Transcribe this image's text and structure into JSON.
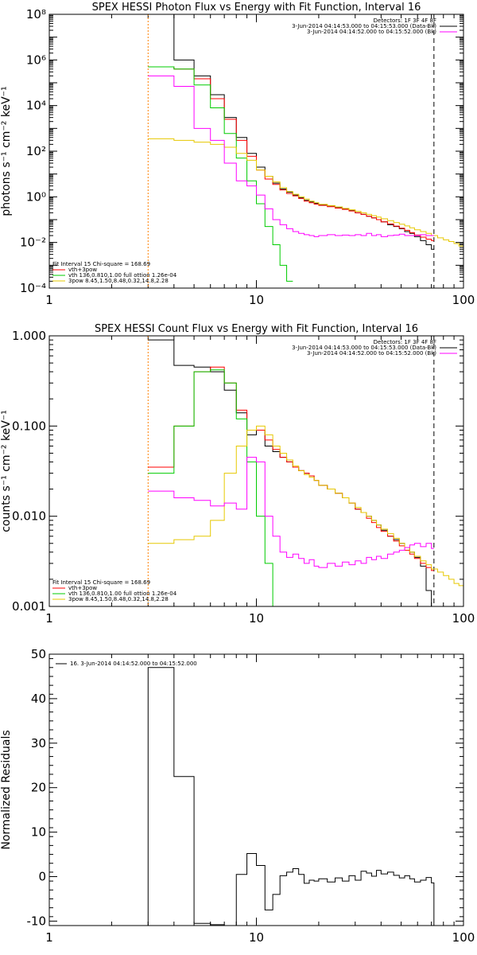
{
  "chart_data": [
    {
      "type": "line",
      "title": "SPEX HESSI Photon Flux vs Energy with Fit Function, Interval 16",
      "xlabel": "",
      "ylabel": "photons s⁻¹ cm⁻² keV⁻¹",
      "x_scale": "log",
      "y_scale": "log",
      "xlim": [
        1,
        100
      ],
      "ylim": [
        0.0001,
        100000000
      ],
      "x_ticks": [
        {
          "v": 1,
          "label": "1"
        },
        {
          "v": 10,
          "label": "10"
        },
        {
          "v": 100,
          "label": "100"
        }
      ],
      "y_ticks": [
        {
          "v": 0.0001,
          "label": "10⁻⁴"
        },
        {
          "v": 0.01,
          "label": "10⁻²"
        },
        {
          "v": 1,
          "label": "10⁰"
        },
        {
          "v": 100,
          "label": "10²"
        },
        {
          "v": 10000,
          "label": "10⁴"
        },
        {
          "v": 1000000,
          "label": "10⁶"
        },
        {
          "v": 100000000,
          "label": "10⁸"
        }
      ],
      "vlines": [
        {
          "x": 3,
          "color": "#ff7f00",
          "dash": "2,2"
        },
        {
          "x": 72,
          "color": "#000000",
          "dash": "6,4"
        }
      ],
      "legend_top_right": [
        {
          "text": "Detectors: 1F 3F 4F 8F",
          "color": "#000000"
        },
        {
          "text": "3-Jun-2014 04:14:53.000 to 04:15:53.000 (Data-Bk)",
          "color": "#000000"
        },
        {
          "text": "3-Jun-2014 04:14:52.000 to 04:15:52.000 (Bk)",
          "color": "#ff00ff"
        }
      ],
      "legend_bottom_left": [
        {
          "text": "Fit Interval 15   Chi-square = 168.69",
          "color": "#000000"
        },
        {
          "text": "vth+3pow",
          "color": "#ff0000"
        },
        {
          "text": "vth 136,0.810,1.00  full ottion 1.26e-04",
          "color": "#00cc00"
        },
        {
          "text": "3pow  8.45,1.50,8.48,0.32,14.8,2.28",
          "color": "#e6c800"
        }
      ],
      "series": [
        {
          "color": "#000000",
          "type": "step",
          "edges": [
            3,
            4,
            5,
            6,
            7,
            8,
            9,
            10,
            11,
            12,
            13,
            14,
            15,
            16,
            17,
            18,
            19,
            20,
            22,
            24,
            26,
            28,
            30,
            32,
            34,
            36,
            38,
            40,
            43,
            46,
            49,
            52,
            55,
            58,
            62,
            66,
            70,
            72
          ],
          "values": [
            100000000,
            1000000,
            200000,
            30000,
            3000,
            400,
            80,
            20,
            8,
            4,
            2.2,
            1.6,
            1.2,
            0.9,
            0.7,
            0.6,
            0.52,
            0.45,
            0.4,
            0.35,
            0.3,
            0.25,
            0.2,
            0.17,
            0.14,
            0.12,
            0.1,
            0.08,
            0.06,
            0.05,
            0.04,
            0.03,
            0.025,
            0.018,
            0.012,
            0.008,
            0.005
          ]
        },
        {
          "color": "#ff0000",
          "type": "step",
          "edges": [
            3,
            4,
            5,
            6,
            7,
            8,
            9,
            10,
            11,
            12,
            13,
            14,
            15,
            16,
            17,
            18,
            19,
            20,
            22,
            24,
            26,
            28,
            30,
            32,
            34,
            36,
            38,
            40,
            43,
            46,
            49,
            52,
            55,
            58,
            62,
            66,
            70,
            72
          ],
          "values": [
            500000,
            400000,
            150000,
            20000,
            2500,
            300,
            60,
            15,
            6,
            3.5,
            2.0,
            1.4,
            1.1,
            0.85,
            0.65,
            0.55,
            0.48,
            0.42,
            0.37,
            0.32,
            0.28,
            0.24,
            0.2,
            0.17,
            0.14,
            0.12,
            0.1,
            0.08,
            0.065,
            0.052,
            0.042,
            0.034,
            0.027,
            0.021,
            0.017,
            0.014,
            0.012
          ]
        },
        {
          "color": "#00cc00",
          "type": "step",
          "edges": [
            3,
            4,
            5,
            6,
            7,
            8,
            9,
            10,
            11,
            12,
            13,
            14,
            15
          ],
          "values": [
            500000,
            400000,
            80000,
            8000,
            600,
            50,
            5,
            0.5,
            0.05,
            0.008,
            0.001,
            0.0002
          ]
        },
        {
          "color": "#e6c800",
          "type": "step",
          "edges": [
            3,
            4,
            5,
            6,
            7,
            8,
            9,
            10,
            11,
            12,
            13,
            14,
            15,
            16,
            17,
            18,
            19,
            20,
            22,
            24,
            26,
            28,
            30,
            32,
            34,
            36,
            38,
            40,
            43,
            46,
            49,
            52,
            55,
            58,
            62,
            66,
            70,
            75,
            80,
            85,
            90,
            95,
            100
          ],
          "values": [
            350,
            300,
            250,
            200,
            150,
            80,
            40,
            15,
            8,
            4.5,
            2.5,
            1.7,
            1.3,
            1.0,
            0.8,
            0.65,
            0.55,
            0.47,
            0.41,
            0.36,
            0.31,
            0.27,
            0.23,
            0.2,
            0.17,
            0.15,
            0.13,
            0.11,
            0.09,
            0.075,
            0.063,
            0.053,
            0.044,
            0.036,
            0.03,
            0.025,
            0.02,
            0.016,
            0.013,
            0.011,
            0.009,
            0.007
          ]
        },
        {
          "color": "#ff00ff",
          "type": "step",
          "edges": [
            3,
            4,
            5,
            6,
            7,
            8,
            9,
            10,
            11,
            12,
            13,
            14,
            15,
            16,
            17,
            18,
            19,
            20,
            22,
            24,
            26,
            28,
            30,
            32,
            34,
            36,
            38,
            40,
            43,
            46,
            49,
            52,
            55,
            58,
            62,
            66,
            70,
            72
          ],
          "values": [
            200000,
            70000,
            1000,
            300,
            30,
            5,
            3,
            1.2,
            0.3,
            0.1,
            0.06,
            0.04,
            0.03,
            0.025,
            0.022,
            0.02,
            0.018,
            0.02,
            0.022,
            0.02,
            0.021,
            0.02,
            0.022,
            0.02,
            0.025,
            0.02,
            0.022,
            0.018,
            0.02,
            0.021,
            0.023,
            0.02,
            0.02,
            0.02,
            0.022,
            0.02,
            0.02
          ]
        }
      ]
    },
    {
      "type": "line",
      "title": "SPEX HESSI Count Flux vs Energy with Fit Function, Interval 16",
      "xlabel": "",
      "ylabel": "counts s⁻¹ cm⁻² keV⁻¹",
      "x_scale": "log",
      "y_scale": "log",
      "xlim": [
        1,
        100
      ],
      "ylim": [
        0.001,
        1
      ],
      "x_ticks": [
        {
          "v": 1,
          "label": "1"
        },
        {
          "v": 10,
          "label": "10"
        },
        {
          "v": 100,
          "label": "100"
        }
      ],
      "y_ticks": [
        {
          "v": 0.001,
          "label": "0.001"
        },
        {
          "v": 0.01,
          "label": "0.010"
        },
        {
          "v": 0.1,
          "label": "0.100"
        },
        {
          "v": 1,
          "label": "1.000"
        }
      ],
      "vlines": [
        {
          "x": 3,
          "color": "#ff7f00",
          "dash": "2,2"
        },
        {
          "x": 72,
          "color": "#000000",
          "dash": "6,4"
        }
      ],
      "legend_top_right": [
        {
          "text": "Detectors: 1F 3F 4F 8F",
          "color": "#000000"
        },
        {
          "text": "3-Jun-2014 04:14:53.000 to 04:15:53.000 (Data-Bk)",
          "color": "#000000"
        },
        {
          "text": "3-Jun-2014 04:14:52.000 to 04:15:52.000 (Bk)",
          "color": "#ff00ff"
        }
      ],
      "legend_bottom_left": [
        {
          "text": "Fit Interval 15   Chi-square = 168.69",
          "color": "#000000"
        },
        {
          "text": "vth+3pow",
          "color": "#ff0000"
        },
        {
          "text": "vth 136,0.810,1.00  full ottion 1.26e-04",
          "color": "#00cc00"
        },
        {
          "text": "3pow  8.45,1.50,8.48,0.32,14.8,2.28",
          "color": "#e6c800"
        }
      ],
      "series": [
        {
          "color": "#000000",
          "type": "step",
          "edges": [
            3,
            4,
            5,
            6,
            7,
            8,
            9,
            10,
            11,
            12,
            13,
            14,
            15,
            16,
            17,
            18,
            19,
            20,
            22,
            24,
            26,
            28,
            30,
            32,
            34,
            36,
            38,
            40,
            43,
            46,
            49,
            52,
            55,
            58,
            62,
            66,
            70,
            72
          ],
          "values": [
            0.9,
            0.47,
            0.45,
            0.4,
            0.25,
            0.14,
            0.08,
            0.09,
            0.06,
            0.052,
            0.045,
            0.04,
            0.035,
            0.032,
            0.03,
            0.028,
            0.025,
            0.022,
            0.02,
            0.018,
            0.016,
            0.014,
            0.012,
            0.011,
            0.01,
            0.009,
            0.008,
            0.007,
            0.006,
            0.0055,
            0.005,
            0.0045,
            0.004,
            0.0035,
            0.0028,
            0.0015,
            0.001
          ]
        },
        {
          "color": "#ff0000",
          "type": "step",
          "edges": [
            3,
            4,
            5,
            6,
            7,
            8,
            9,
            10,
            11,
            12,
            13,
            14,
            15,
            16,
            17,
            18,
            19,
            20,
            22,
            24,
            26,
            28,
            30,
            32,
            34,
            36,
            38,
            40,
            43,
            46,
            49,
            52,
            55,
            58,
            62,
            66,
            70,
            72
          ],
          "values": [
            0.035,
            0.1,
            0.4,
            0.45,
            0.3,
            0.15,
            0.09,
            0.09,
            0.07,
            0.055,
            0.045,
            0.04,
            0.035,
            0.032,
            0.03,
            0.028,
            0.025,
            0.022,
            0.02,
            0.018,
            0.016,
            0.014,
            0.012,
            0.011,
            0.0095,
            0.0085,
            0.0075,
            0.0068,
            0.006,
            0.0053,
            0.0047,
            0.0042,
            0.0038,
            0.0034,
            0.003,
            0.0027,
            0.0025
          ]
        },
        {
          "color": "#00cc00",
          "type": "step",
          "edges": [
            3,
            4,
            5,
            6,
            7,
            8,
            9,
            10,
            11,
            12,
            13
          ],
          "values": [
            0.03,
            0.1,
            0.4,
            0.42,
            0.3,
            0.12,
            0.04,
            0.01,
            0.003,
            0.001
          ]
        },
        {
          "color": "#e6c800",
          "type": "step",
          "edges": [
            3,
            4,
            5,
            6,
            7,
            8,
            9,
            10,
            11,
            12,
            13,
            14,
            15,
            16,
            17,
            18,
            19,
            20,
            22,
            24,
            26,
            28,
            30,
            32,
            34,
            36,
            38,
            40,
            43,
            46,
            49,
            52,
            55,
            58,
            62,
            66,
            70,
            75,
            80,
            85,
            90,
            95,
            100
          ],
          "values": [
            0.005,
            0.0055,
            0.006,
            0.009,
            0.03,
            0.06,
            0.09,
            0.1,
            0.08,
            0.06,
            0.05,
            0.042,
            0.036,
            0.032,
            0.029,
            0.027,
            0.025,
            0.022,
            0.02,
            0.018,
            0.016,
            0.014,
            0.0125,
            0.011,
            0.01,
            0.009,
            0.008,
            0.0072,
            0.0064,
            0.0057,
            0.005,
            0.0045,
            0.004,
            0.0036,
            0.0032,
            0.0029,
            0.0026,
            0.0024,
            0.0022,
            0.002,
            0.0018,
            0.0017
          ]
        },
        {
          "color": "#ff00ff",
          "type": "step",
          "edges": [
            3,
            4,
            5,
            6,
            7,
            8,
            9,
            10,
            11,
            12,
            13,
            14,
            15,
            16,
            17,
            18,
            19,
            20,
            22,
            24,
            26,
            28,
            30,
            32,
            34,
            36,
            38,
            40,
            43,
            46,
            49,
            52,
            55,
            58,
            62,
            66,
            70,
            72
          ],
          "values": [
            0.019,
            0.016,
            0.015,
            0.013,
            0.014,
            0.012,
            0.045,
            0.04,
            0.01,
            0.006,
            0.004,
            0.0035,
            0.0038,
            0.0034,
            0.003,
            0.0033,
            0.0028,
            0.0027,
            0.003,
            0.0028,
            0.0031,
            0.0029,
            0.0032,
            0.003,
            0.0035,
            0.0033,
            0.0036,
            0.0034,
            0.0038,
            0.004,
            0.0042,
            0.0045,
            0.0048,
            0.005,
            0.0046,
            0.005,
            0.0044
          ]
        }
      ]
    },
    {
      "type": "line",
      "title": "",
      "xlabel": "",
      "ylabel": "Normalized Residuals",
      "x_scale": "log",
      "y_scale": "linear",
      "xlim": [
        1,
        100
      ],
      "ylim": [
        -11,
        50
      ],
      "x_ticks": [
        {
          "v": 1,
          "label": "1"
        },
        {
          "v": 10,
          "label": "10"
        },
        {
          "v": 100,
          "label": "100"
        }
      ],
      "y_ticks": [
        {
          "v": -10,
          "label": "-10"
        },
        {
          "v": 0,
          "label": "0"
        },
        {
          "v": 10,
          "label": "10"
        },
        {
          "v": 20,
          "label": "20"
        },
        {
          "v": 30,
          "label": "30"
        },
        {
          "v": 40,
          "label": "40"
        },
        {
          "v": 50,
          "label": "50"
        }
      ],
      "vlines": [],
      "legend_top_right": [],
      "legend_bottom_left": [],
      "legend_top_left": [
        {
          "text": "16.  3-Jun-2014 04:14:52.000 to 04:15:52.000",
          "color": "#000000"
        }
      ],
      "series": [
        {
          "color": "#000000",
          "type": "step",
          "baseline": -11,
          "edges": [
            3,
            4,
            5,
            6,
            7,
            8,
            9,
            10,
            11,
            12,
            13,
            14,
            15,
            16,
            17,
            18,
            19,
            20,
            22,
            24,
            26,
            28,
            30,
            32,
            34,
            36,
            38,
            40,
            43,
            46,
            49,
            52,
            55,
            58,
            62,
            66,
            70,
            72
          ],
          "values": [
            47,
            22.5,
            -10.5,
            -10.8,
            -11,
            0.5,
            5.2,
            2.5,
            -7.5,
            -4,
            0.2,
            1,
            1.8,
            0.5,
            -1.5,
            -0.8,
            -1,
            -0.5,
            -1.2,
            -0.3,
            -1,
            0.2,
            -0.8,
            1.2,
            0.8,
            0.1,
            1.4,
            0.6,
            1,
            0.3,
            -0.3,
            0.2,
            -0.5,
            -1.2,
            -0.8,
            -0.2,
            -1.4
          ]
        }
      ]
    }
  ]
}
